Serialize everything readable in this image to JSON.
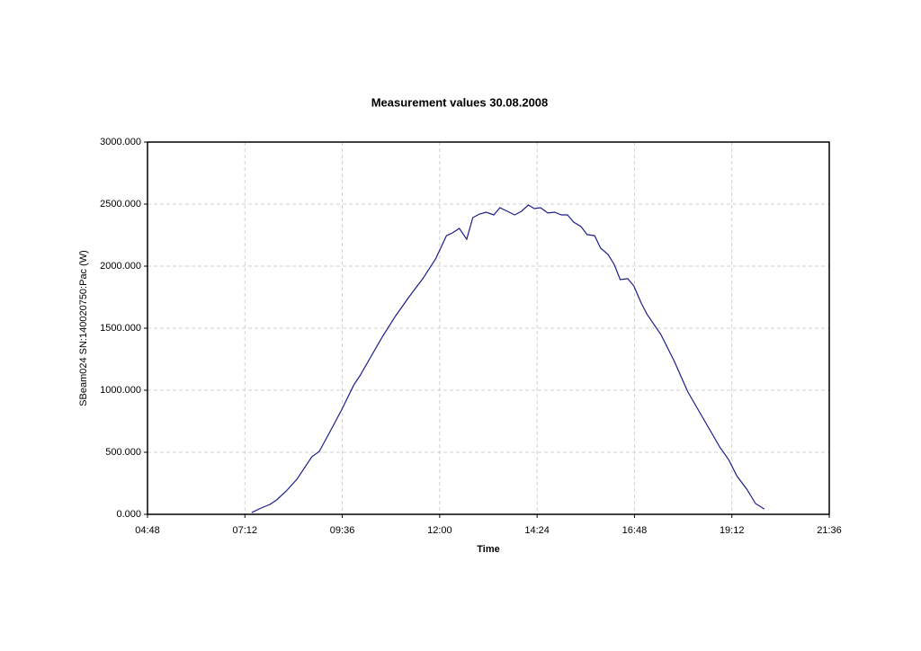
{
  "chart_data": {
    "type": "line",
    "title": "Measurement values 30.08.2008",
    "x_label": "Time",
    "y_label": "SBeam024 SN:140020750:Pac (W)",
    "xlim": [
      288,
      1296
    ],
    "xticks": [
      {
        "value": 288,
        "label": "04:48"
      },
      {
        "value": 432,
        "label": "07:12"
      },
      {
        "value": 576,
        "label": "09:36"
      },
      {
        "value": 720,
        "label": "12:00"
      },
      {
        "value": 864,
        "label": "14:24"
      },
      {
        "value": 1008,
        "label": "16:48"
      },
      {
        "value": 1152,
        "label": "19:12"
      },
      {
        "value": 1296,
        "label": "21:36"
      }
    ],
    "ylim": [
      0,
      3000
    ],
    "yticks": [
      {
        "value": 0,
        "label": "0.000"
      },
      {
        "value": 500,
        "label": "500.000"
      },
      {
        "value": 1000,
        "label": "1000.000"
      },
      {
        "value": 1500,
        "label": "1500.000"
      },
      {
        "value": 2000,
        "label": "2000.000"
      },
      {
        "value": 2500,
        "label": "2500.000"
      },
      {
        "value": 3000,
        "label": "3000.000"
      }
    ],
    "grid": true,
    "color": "#1c1c8a",
    "x": [
      442,
      456,
      469,
      479,
      493,
      509,
      531,
      542,
      555,
      575,
      593,
      602,
      618,
      635,
      655,
      675,
      695,
      714,
      730,
      739,
      749,
      760,
      769,
      779,
      789,
      800,
      809,
      820,
      831,
      841,
      851,
      860,
      869,
      880,
      890,
      900,
      909,
      918,
      929,
      938,
      949,
      958,
      969,
      978,
      987,
      998,
      1007,
      1018,
      1027,
      1047,
      1067,
      1087,
      1107,
      1124,
      1134,
      1147,
      1160,
      1174,
      1187,
      1200
    ],
    "values": [
      14,
      51,
      80,
      116,
      188,
      283,
      464,
      507,
      638,
      841,
      1043,
      1116,
      1268,
      1428,
      1601,
      1754,
      1899,
      2058,
      2246,
      2268,
      2304,
      2217,
      2391,
      2420,
      2435,
      2413,
      2471,
      2442,
      2413,
      2442,
      2493,
      2464,
      2471,
      2428,
      2435,
      2413,
      2413,
      2355,
      2319,
      2254,
      2246,
      2145,
      2094,
      2014,
      1891,
      1899,
      1841,
      1703,
      1609,
      1449,
      1232,
      986,
      797,
      638,
      543,
      442,
      304,
      203,
      87,
      43
    ]
  }
}
